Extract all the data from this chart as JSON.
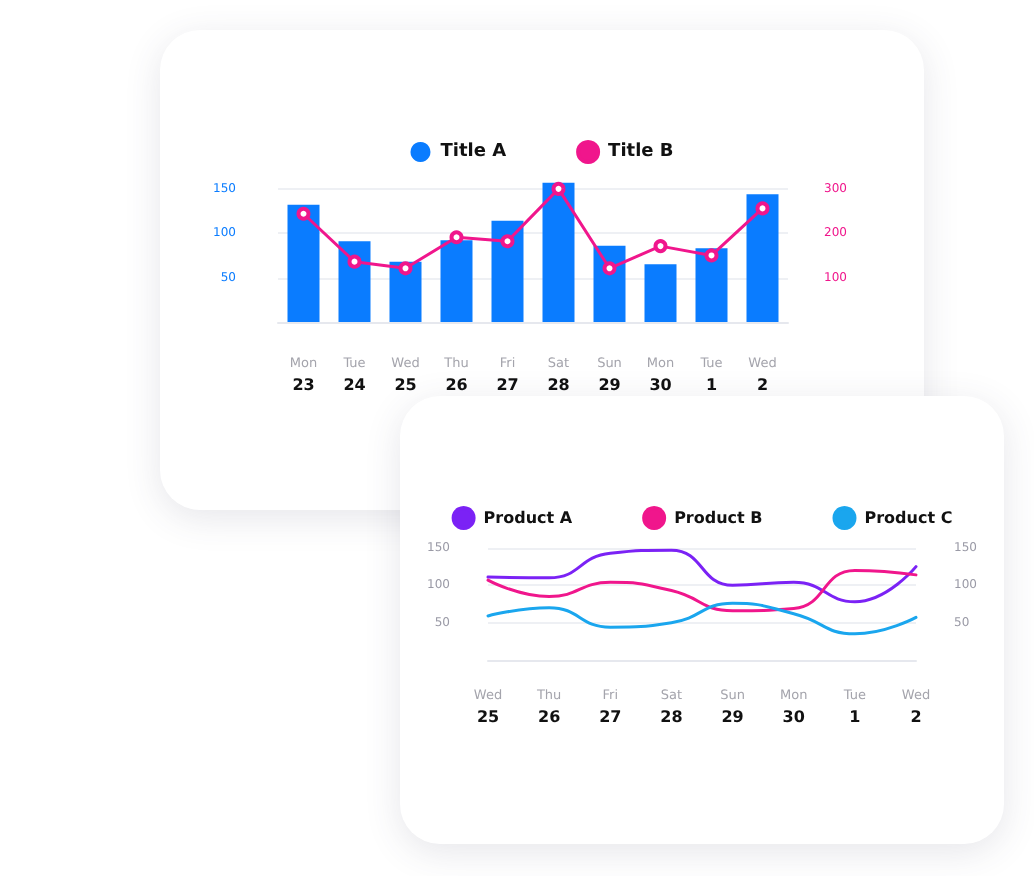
{
  "chart_data": [
    {
      "type": "bar",
      "categories": [
        "Mon\n23",
        "Tue\n24",
        "Wed\n25",
        "Thu\n26",
        "Fri\n27",
        "Sat\n28",
        "Sun\n29",
        "Mon\n30",
        "Tue\n1",
        "Wed\n2"
      ],
      "series": [
        {
          "name": "Title A",
          "color": "#0a7cff",
          "values": [
            132,
            91,
            68,
            92,
            114,
            157,
            86,
            65,
            83,
            144
          ]
        },
        {
          "name": "Title B",
          "type": "line",
          "axis": "y2",
          "color": "#f0168c",
          "values": [
            244,
            136,
            121,
            191,
            182,
            300,
            121,
            171,
            150,
            256
          ]
        }
      ],
      "ylim": [
        0,
        160
      ],
      "yticks": [
        50,
        100,
        150
      ],
      "y2lim": [
        0,
        320
      ],
      "y2ticks": [
        100,
        200,
        300
      ],
      "grid": "y",
      "legend": "top",
      "marker": "circle"
    },
    {
      "type": "line",
      "categories": [
        "Wed\n25",
        "Thu\n26",
        "Fri\n27",
        "Sat\n28",
        "Sun\n29",
        "Mon\n30",
        "Tue\n1",
        "Wed\n2"
      ],
      "series": [
        {
          "name": "Product A",
          "color": "#7b22f5",
          "values": [
            111,
            110,
            143,
            147,
            100,
            104,
            78,
            125
          ]
        },
        {
          "name": "Product B",
          "color": "#f0168c",
          "values": [
            107,
            85,
            104,
            93,
            66,
            69,
            120,
            114
          ]
        },
        {
          "name": "Product C",
          "color": "#1aa6ee",
          "values": [
            59,
            70,
            44,
            50,
            76,
            62,
            35,
            57
          ]
        }
      ],
      "ylim": [
        0,
        150
      ],
      "yticks": [
        50,
        100,
        150
      ],
      "y2lim": [
        0,
        150
      ],
      "y2ticks": [
        50,
        100,
        150
      ],
      "grid": "y",
      "legend": "top",
      "marker": "none"
    }
  ]
}
